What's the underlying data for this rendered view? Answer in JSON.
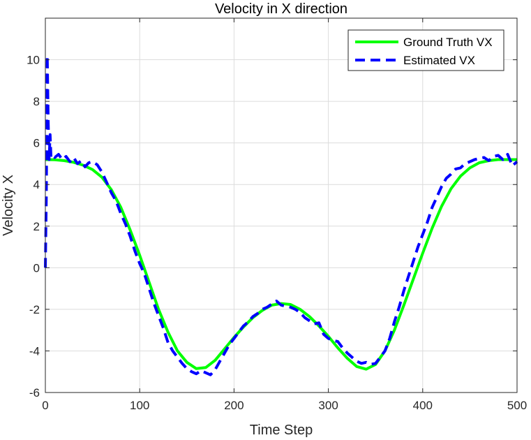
{
  "chart_data": {
    "type": "line",
    "title": "Velocity in X direction",
    "xlabel": "Time Step",
    "ylabel": "Velocity X",
    "xlim": [
      0,
      500
    ],
    "ylim": [
      -6,
      12
    ],
    "xticks": [
      0,
      100,
      200,
      300,
      400,
      500
    ],
    "yticks": [
      -6,
      -4,
      -2,
      0,
      2,
      4,
      6,
      8,
      10
    ],
    "grid": true,
    "legend_position": "top-right",
    "series": [
      {
        "name": "Ground Truth VX",
        "color": "#00ff00",
        "style": "solid",
        "x": [
          0,
          10,
          20,
          30,
          40,
          50,
          60,
          70,
          80,
          90,
          100,
          110,
          120,
          130,
          140,
          150,
          160,
          170,
          180,
          190,
          200,
          210,
          220,
          230,
          240,
          250,
          260,
          270,
          280,
          290,
          300,
          310,
          320,
          330,
          340,
          350,
          360,
          370,
          380,
          390,
          400,
          410,
          420,
          430,
          440,
          450,
          460,
          470,
          480,
          490,
          500
        ],
        "values": [
          5.2,
          5.19,
          5.15,
          5.07,
          4.93,
          4.72,
          4.35,
          3.75,
          2.9,
          1.8,
          0.6,
          -0.7,
          -2.0,
          -3.1,
          -4.0,
          -4.55,
          -4.85,
          -4.8,
          -4.45,
          -3.9,
          -3.35,
          -2.85,
          -2.4,
          -2.05,
          -1.8,
          -1.72,
          -1.77,
          -2.0,
          -2.35,
          -2.8,
          -3.3,
          -3.85,
          -4.35,
          -4.75,
          -4.88,
          -4.65,
          -4.0,
          -3.0,
          -1.8,
          -0.55,
          0.7,
          1.9,
          2.95,
          3.8,
          4.4,
          4.8,
          5.05,
          5.15,
          5.2,
          5.2,
          5.2
        ]
      },
      {
        "name": "Estimated VX",
        "color": "#0000ff",
        "style": "dashed",
        "x": [
          0,
          1,
          2,
          3,
          4,
          5,
          6,
          8,
          10,
          14,
          18,
          22,
          26,
          30,
          34,
          38,
          42,
          46,
          50,
          55,
          60,
          65,
          70,
          75,
          80,
          85,
          90,
          95,
          100,
          105,
          110,
          115,
          120,
          125,
          130,
          135,
          140,
          145,
          150,
          155,
          160,
          165,
          170,
          175,
          180,
          185,
          190,
          195,
          200,
          205,
          210,
          215,
          220,
          225,
          230,
          235,
          240,
          245,
          250,
          255,
          260,
          265,
          270,
          275,
          280,
          285,
          290,
          295,
          300,
          305,
          310,
          315,
          320,
          325,
          330,
          335,
          340,
          345,
          350,
          355,
          360,
          365,
          370,
          375,
          380,
          385,
          390,
          395,
          400,
          405,
          410,
          415,
          420,
          425,
          430,
          435,
          440,
          445,
          450,
          455,
          460,
          465,
          470,
          475,
          480,
          485,
          490,
          495,
          500
        ],
        "values": [
          0.0,
          3.5,
          10.2,
          7.0,
          5.2,
          6.4,
          5.3,
          5.4,
          5.3,
          5.45,
          5.2,
          5.35,
          5.1,
          5.3,
          5.0,
          5.15,
          4.85,
          5.05,
          5.1,
          4.95,
          4.6,
          4.1,
          3.6,
          3.2,
          2.6,
          2.1,
          1.5,
          0.8,
          0.2,
          -0.3,
          -1.0,
          -1.7,
          -2.3,
          -2.9,
          -3.6,
          -4.0,
          -4.3,
          -4.6,
          -4.85,
          -5.0,
          -5.1,
          -4.95,
          -5.05,
          -5.15,
          -4.9,
          -4.5,
          -4.1,
          -3.7,
          -3.4,
          -3.1,
          -2.8,
          -2.6,
          -2.35,
          -2.2,
          -2.0,
          -1.9,
          -1.75,
          -1.6,
          -1.8,
          -1.85,
          -1.9,
          -2.0,
          -2.15,
          -2.4,
          -2.55,
          -2.7,
          -2.65,
          -3.2,
          -3.4,
          -3.5,
          -3.55,
          -3.85,
          -4.1,
          -4.3,
          -4.5,
          -4.6,
          -4.55,
          -4.65,
          -4.6,
          -4.3,
          -4.0,
          -3.4,
          -2.6,
          -1.9,
          -1.1,
          -0.4,
          0.3,
          1.0,
          1.6,
          2.2,
          2.9,
          3.4,
          3.9,
          4.3,
          4.5,
          4.75,
          4.8,
          5.0,
          5.1,
          5.2,
          5.25,
          5.3,
          5.15,
          5.35,
          5.4,
          5.2,
          5.45,
          4.9,
          5.1
        ]
      }
    ]
  }
}
